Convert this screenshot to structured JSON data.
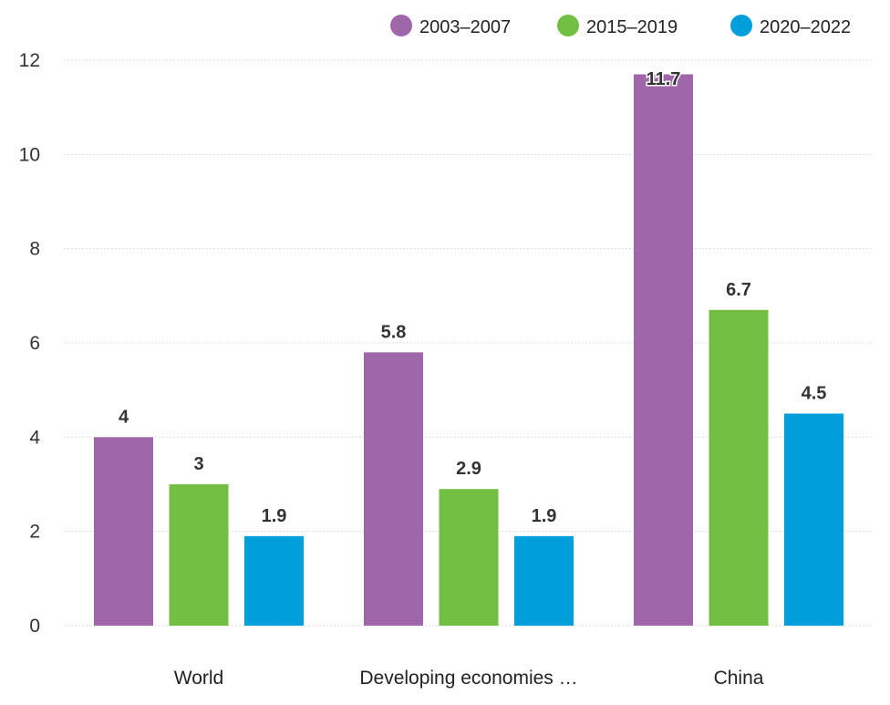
{
  "chart_data": {
    "type": "bar",
    "title": "",
    "xlabel": "",
    "ylabel": "",
    "categories": [
      "World",
      "Developing economies …",
      "China"
    ],
    "series": [
      {
        "name": "2003–2007",
        "color": "#a066aa",
        "values": [
          4,
          5.8,
          11.7
        ]
      },
      {
        "name": "2015–2019",
        "color": "#72bf44",
        "values": [
          3,
          2.9,
          6.7
        ]
      },
      {
        "name": "2020–2022",
        "color": "#009edb",
        "values": [
          1.9,
          1.9,
          4.5
        ]
      }
    ],
    "data_labels": [
      [
        "4",
        "5.8",
        "11.7"
      ],
      [
        "3",
        "2.9",
        "6.7"
      ],
      [
        "1.9",
        "1.9",
        "4.5"
      ]
    ],
    "ylim": [
      0,
      12
    ],
    "yticks": [
      "0",
      "2",
      "4",
      "6",
      "8",
      "10",
      "12"
    ],
    "grid": "horizontal dotted",
    "legend_position": "top-right"
  }
}
